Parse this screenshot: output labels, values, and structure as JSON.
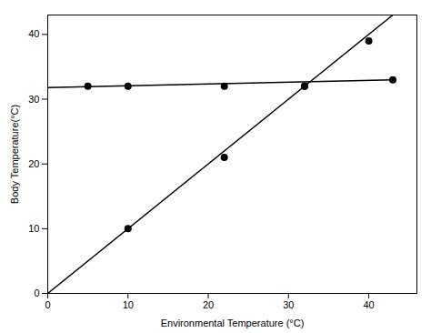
{
  "chart_data": {
    "type": "scatter",
    "xlabel": "Environmental Temperature (°C)",
    "ylabel": "Body Temperature(°C)",
    "xlim": [
      0,
      46
    ],
    "ylim": [
      0,
      43
    ],
    "xticks": [
      0,
      10,
      20,
      30,
      40
    ],
    "yticks": [
      0,
      10,
      20,
      30,
      40
    ],
    "grid": false,
    "series": [
      {
        "type": "line",
        "color": "black",
        "x": [
          0,
          43
        ],
        "values": [
          31.8,
          33
        ]
      },
      {
        "type": "line",
        "color": "black",
        "x": [
          0,
          43
        ],
        "values": [
          0,
          43
        ]
      },
      {
        "type": "scatter",
        "color": "black",
        "x": [
          5,
          10,
          22,
          32,
          43
        ],
        "values": [
          32,
          32,
          32,
          32,
          33
        ]
      },
      {
        "type": "scatter",
        "color": "black",
        "x": [
          10,
          22,
          32,
          40
        ],
        "values": [
          10,
          21,
          32,
          39
        ]
      }
    ]
  }
}
